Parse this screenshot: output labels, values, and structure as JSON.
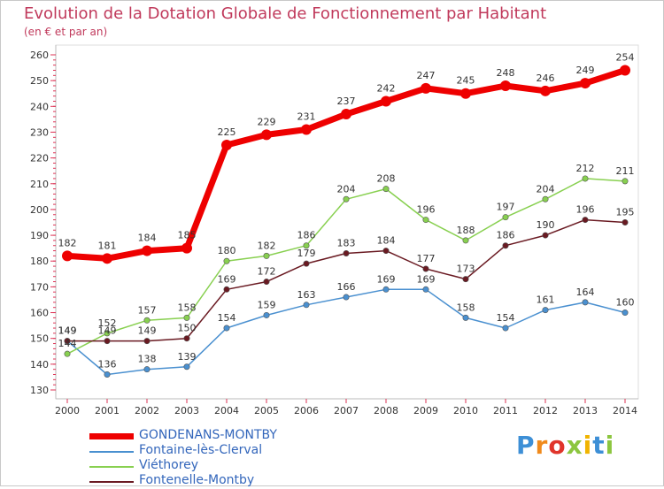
{
  "chart_data": {
    "type": "line",
    "title": "Evolution de la Dotation Globale de Fonctionnement par Habitant",
    "subtitle": "(en € et par an)",
    "xlabel": "",
    "ylabel": "",
    "x": [
      "2000",
      "2001",
      "2002",
      "2003",
      "2004",
      "2005",
      "2006",
      "2007",
      "2008",
      "2009",
      "2010",
      "2011",
      "2012",
      "2013",
      "2014"
    ],
    "ylim": [
      130,
      260
    ],
    "yticks": [
      "130",
      "140",
      "150",
      "160",
      "170",
      "180",
      "190",
      "200",
      "210",
      "220",
      "230",
      "240",
      "250",
      "260"
    ],
    "grid": false,
    "legend_position": "bottom-left",
    "series": [
      {
        "name": "GONDENANS-MONTBY",
        "color": "#ee0000",
        "values": [
          182,
          181,
          184,
          185,
          225,
          229,
          231,
          237,
          242,
          247,
          245,
          248,
          246,
          249,
          254
        ]
      },
      {
        "name": "Fontaine-lès-Clerval",
        "color": "#4a90d0",
        "values": [
          149,
          136,
          138,
          139,
          154,
          159,
          163,
          166,
          169,
          169,
          158,
          154,
          161,
          164,
          160
        ]
      },
      {
        "name": "Viéthorey",
        "color": "#88d050",
        "values": [
          144,
          152,
          157,
          158,
          180,
          182,
          186,
          204,
          208,
          196,
          188,
          197,
          204,
          212,
          211
        ]
      },
      {
        "name": "Fontenelle-Montby",
        "color": "#6a1a22",
        "values": [
          149,
          149,
          149,
          150,
          169,
          172,
          179,
          183,
          184,
          177,
          173,
          186,
          190,
          196,
          195
        ]
      }
    ]
  },
  "branding": {
    "letters": [
      "P",
      "r",
      "o",
      "x",
      "i",
      "t",
      "i"
    ],
    "letter_colors": [
      "#3d8fd6",
      "#f08a1c",
      "#e0352b",
      "#8cc63f",
      "#f0b400",
      "#3d8fd6",
      "#8cc63f"
    ]
  }
}
